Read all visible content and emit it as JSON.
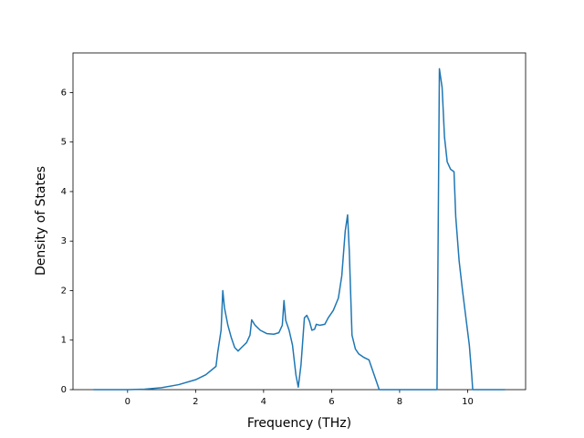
{
  "chart_data": {
    "type": "line",
    "xlabel": "Frequency (THz)",
    "ylabel": "Density of States",
    "xlim": [
      -1.605,
      11.705
    ],
    "ylim": [
      0,
      6.8
    ],
    "xticks": [
      0,
      2,
      4,
      6,
      8,
      10
    ],
    "yticks": [
      0,
      1,
      2,
      3,
      4,
      5,
      6
    ],
    "series": [
      {
        "color": "#1f77b4",
        "x": [
          -1.0,
          0,
          0.5,
          1.0,
          1.5,
          2.0,
          2.3,
          2.6,
          2.65,
          2.75,
          2.8,
          2.85,
          2.95,
          3.05,
          3.15,
          3.25,
          3.35,
          3.5,
          3.6,
          3.65,
          3.75,
          3.9,
          4.1,
          4.3,
          4.45,
          4.55,
          4.6,
          4.65,
          4.75,
          4.85,
          4.95,
          5.02,
          5.1,
          5.2,
          5.27,
          5.35,
          5.42,
          5.5,
          5.55,
          5.65,
          5.8,
          5.9,
          6.05,
          6.2,
          6.3,
          6.4,
          6.47,
          6.52,
          6.6,
          6.7,
          6.8,
          6.95,
          7.1,
          7.15,
          7.3,
          7.4,
          9.1,
          9.17,
          9.25,
          9.32,
          9.4,
          9.5,
          9.6,
          9.65,
          9.75,
          9.85,
          10.05,
          10.12,
          10.15,
          11.1
        ],
        "values": [
          0,
          0,
          0.01,
          0.04,
          0.1,
          0.2,
          0.3,
          0.47,
          0.75,
          1.2,
          2.0,
          1.65,
          1.3,
          1.05,
          0.85,
          0.78,
          0.85,
          0.95,
          1.1,
          1.41,
          1.3,
          1.2,
          1.13,
          1.12,
          1.15,
          1.3,
          1.8,
          1.4,
          1.2,
          0.9,
          0.3,
          0.05,
          0.5,
          1.45,
          1.5,
          1.38,
          1.2,
          1.22,
          1.32,
          1.3,
          1.32,
          1.45,
          1.6,
          1.85,
          2.3,
          3.2,
          3.53,
          2.8,
          1.1,
          0.82,
          0.72,
          0.65,
          0.6,
          0.5,
          0.2,
          0,
          0,
          6.48,
          6.1,
          5.1,
          4.6,
          4.45,
          4.4,
          3.5,
          2.6,
          2.0,
          0.9,
          0.3,
          0,
          0
        ]
      }
    ]
  }
}
